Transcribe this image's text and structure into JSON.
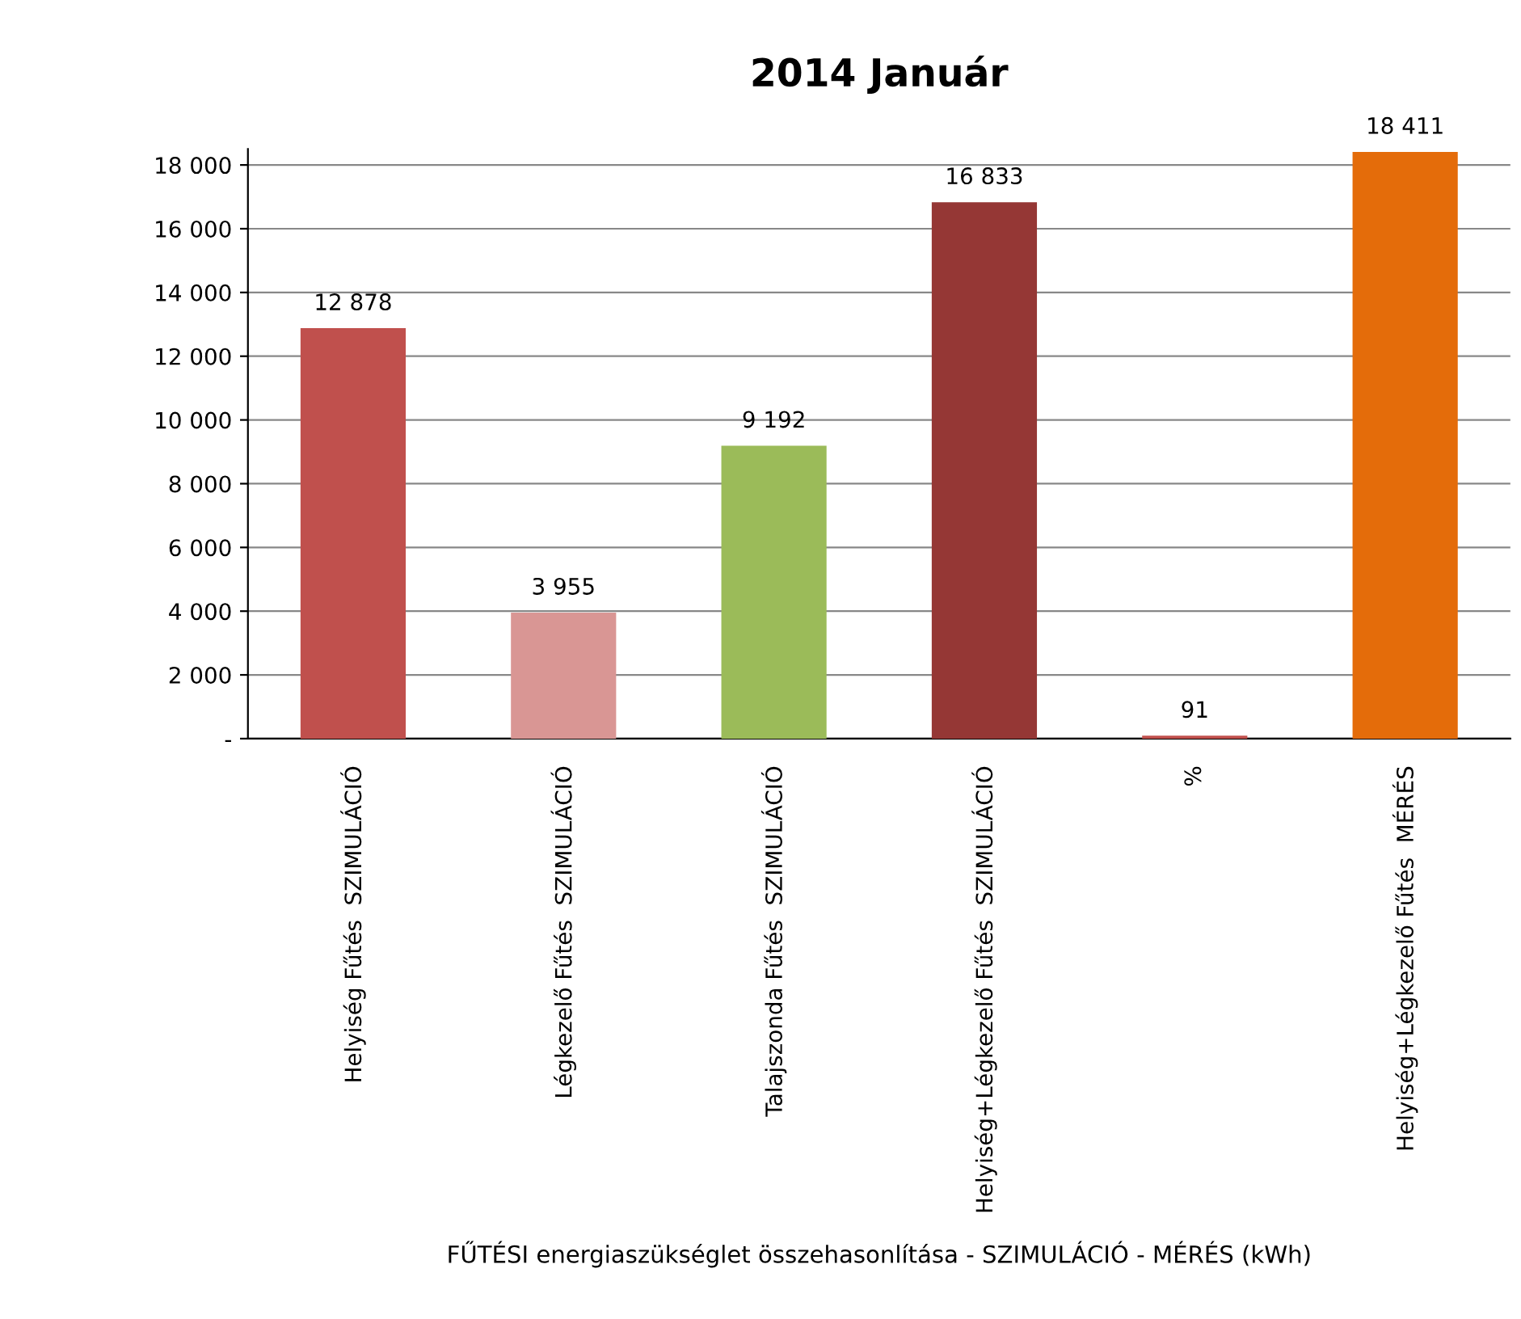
{
  "chart_data": {
    "type": "bar",
    "title": "2014 Január",
    "xlabel": "FŰTÉSI energiaszükséglet összehasonlítása - SZIMULÁCIÓ - MÉRÉS (kWh)",
    "categories": [
      "Helyiség Fűtés  SZIMULÁCIÓ",
      "Légkezelő Fűtés  SZIMULÁCIÓ",
      "Talajszonda Fűtés  SZIMULÁCIÓ",
      "Helyiség+Légkezelő Fűtés  SZIMULÁCIÓ",
      "%",
      "Helyiség+Légkezelő Fűtés  MÉRÉS"
    ],
    "values": [
      12878,
      3955,
      9192,
      16833,
      91,
      18411
    ],
    "colors": [
      "#c0504d",
      "#d99694",
      "#9bbb59",
      "#953735",
      "#c0504d",
      "#e46c0a"
    ],
    "value_labels": [
      "12 878",
      "3 955",
      "9 192",
      "16 833",
      "91",
      "18 411"
    ],
    "ylim": [
      0,
      18500
    ],
    "yticks": [
      {
        "value": 0,
        "label": "-"
      },
      {
        "value": 2000,
        "label": "2 000"
      },
      {
        "value": 4000,
        "label": "4 000"
      },
      {
        "value": 6000,
        "label": "6 000"
      },
      {
        "value": 8000,
        "label": "8 000"
      },
      {
        "value": 10000,
        "label": "10 000"
      },
      {
        "value": 12000,
        "label": "12 000"
      },
      {
        "value": 14000,
        "label": "14 000"
      },
      {
        "value": 16000,
        "label": "16 000"
      },
      {
        "value": 18000,
        "label": "18 000"
      }
    ],
    "grid": "y",
    "legend": false
  }
}
